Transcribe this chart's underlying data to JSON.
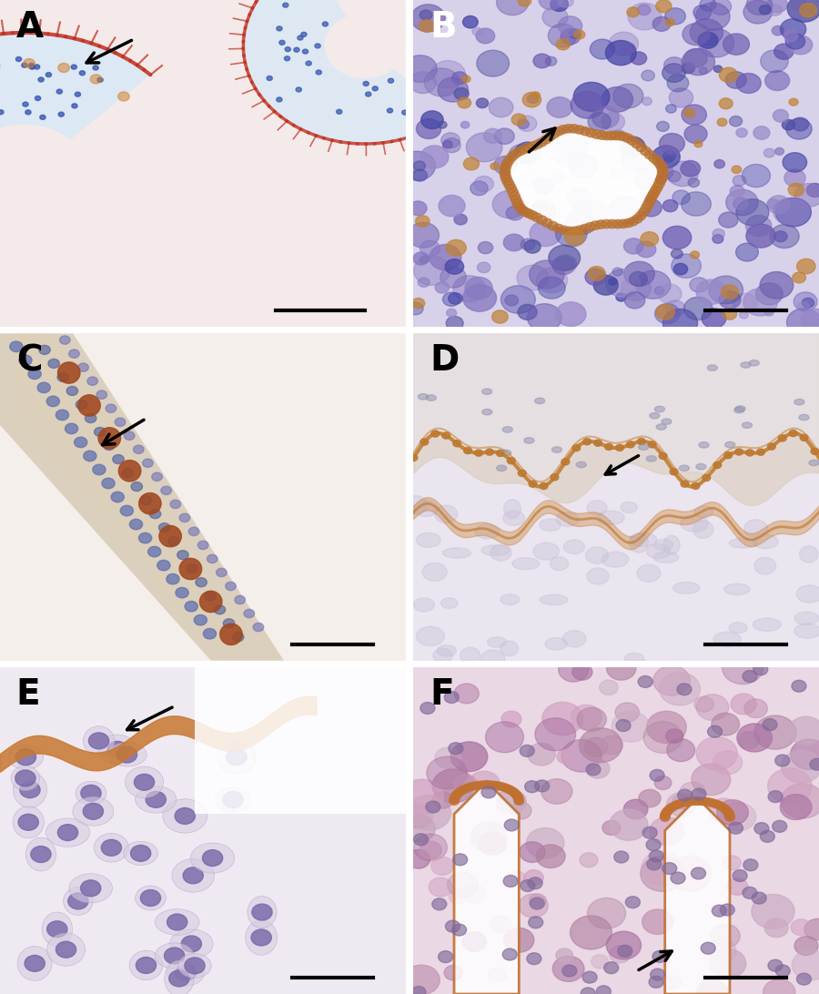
{
  "panels": [
    {
      "label": "A",
      "bg_color": [
        0.96,
        0.92,
        0.92
      ],
      "label_color": "black"
    },
    {
      "label": "B",
      "bg_color": [
        0.85,
        0.82,
        0.92
      ],
      "label_color": "white"
    },
    {
      "label": "C",
      "bg_color": [
        0.96,
        0.94,
        0.92
      ],
      "label_color": "black"
    },
    {
      "label": "D",
      "bg_color": [
        0.92,
        0.9,
        0.94
      ],
      "label_color": "black"
    },
    {
      "label": "E",
      "bg_color": [
        0.94,
        0.92,
        0.95
      ],
      "label_color": "black"
    },
    {
      "label": "F",
      "bg_color": [
        0.92,
        0.85,
        0.9
      ],
      "label_color": "black"
    }
  ],
  "grid_rows": 3,
  "grid_cols": 2,
  "label_fontsize": 28,
  "figsize": [
    9.0,
    10.92
  ],
  "dpi": 100
}
